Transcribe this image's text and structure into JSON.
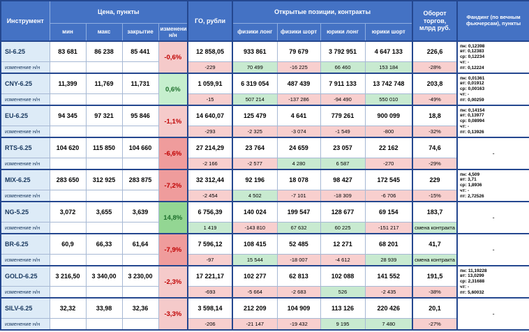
{
  "header": {
    "instrument": "Инструмент",
    "price_group": "Цена, пункты",
    "col_min": "мин",
    "col_max": "макс",
    "col_close": "закрытие",
    "col_change": "изменение н/н",
    "go": "ГО, рубли",
    "positions_group": "Открытые позиции, контракты",
    "col_fiz_long": "физики лонг",
    "col_fiz_short": "физики шорт",
    "col_jur_long": "юрики лонг",
    "col_jur_short": "юрики шорт",
    "turnover": "Оборот торгов, млрд руб.",
    "funding": "Фандинг (по вечным фьючерсам), пункты"
  },
  "change_row_label": "изменение н/н",
  "colors": {
    "header_bg": "#4472C4",
    "header_text": "#FFFFFF",
    "instrument_bg": "#DDEBF7",
    "negative_text": "#C00000",
    "positive_text": "#1D6F2B",
    "negative_bg_light": "#F5CACA",
    "negative_bg_strong": "#EF9C9C",
    "positive_bg_light": "#C6EFCE",
    "positive_bg_strong": "#93D693"
  },
  "rows": [
    {
      "name": "SI-6.25",
      "min": "83 681",
      "max": "86 238",
      "close": "85 441",
      "change": "-0,6%",
      "go": "12 858,05",
      "go_chg": "-229",
      "fiz_long": "933 861",
      "fiz_long_chg": "70 499",
      "fiz_short": "79 679",
      "fiz_short_chg": "-16 225",
      "jur_long": "3 792 951",
      "jur_long_chg": "66 460",
      "jur_short": "4 647 133",
      "jur_short_chg": "153 184",
      "turnover": "226,6",
      "turnover_chg": "-28%",
      "funding_lines": [
        "пн: 0,12398",
        "вт: 0,12383",
        "ср: 0,12234",
        "чт: -",
        "пт: 0,12224"
      ]
    },
    {
      "name": "CNY-6.25",
      "min": "11,399",
      "max": "11,769",
      "close": "11,731",
      "change": "0,6%",
      "go": "1 059,91",
      "go_chg": "-15",
      "fiz_long": "6 319 054",
      "fiz_long_chg": "507 214",
      "fiz_short": "487 439",
      "fiz_short_chg": "-137 286",
      "jur_long": "7 911 133",
      "jur_long_chg": "-94 490",
      "jur_short": "13 742 748",
      "jur_short_chg": "550 010",
      "turnover": "203,8",
      "turnover_chg": "-49%",
      "funding_lines": [
        "пн: 0,01361",
        "вт: 0,01912",
        "ср: 0,00163",
        "чт: -",
        "пт: 0,00259"
      ]
    },
    {
      "name": "EU-6.25",
      "min": "94 345",
      "max": "97 321",
      "close": "95 846",
      "change": "-1,1%",
      "go": "14 640,07",
      "go_chg": "-293",
      "fiz_long": "125 479",
      "fiz_long_chg": "-2 325",
      "fiz_short": "4 641",
      "fiz_short_chg": "-3 074",
      "jur_long": "779 261",
      "jur_long_chg": "-1 549",
      "jur_short": "900 099",
      "jur_short_chg": "-800",
      "turnover": "18,8",
      "turnover_chg": "-32%",
      "funding_lines": [
        "пн: 0,14154",
        "вт: 0,13977",
        "ср: 0,08994",
        "чт: -",
        "пт: 0,13926"
      ]
    },
    {
      "name": "RTS-6.25",
      "min": "104 620",
      "max": "115 850",
      "close": "104 660",
      "change": "-6,6%",
      "go": "27 214,29",
      "go_chg": "-2 166",
      "fiz_long": "23 764",
      "fiz_long_chg": "-2 577",
      "fiz_short": "24 659",
      "fiz_short_chg": "4 280",
      "jur_long": "23 057",
      "jur_long_chg": "6 587",
      "jur_short": "22 162",
      "jur_short_chg": "-270",
      "turnover": "74,6",
      "turnover_chg": "-29%",
      "funding_lines": [
        "-"
      ]
    },
    {
      "name": "MIX-6.25",
      "min": "283 650",
      "max": "312 925",
      "close": "283 875",
      "change": "-7,2%",
      "go": "32 312,44",
      "go_chg": "-2 454",
      "fiz_long": "92 196",
      "fiz_long_chg": "4 502",
      "fiz_short": "18 078",
      "fiz_short_chg": "-7 101",
      "jur_long": "98 427",
      "jur_long_chg": "-18 309",
      "jur_short": "172 545",
      "jur_short_chg": "-6 706",
      "turnover": "229",
      "turnover_chg": "-15%",
      "funding_lines": [
        "пн: 4,509",
        "вт: 3,71",
        "ср: 1,8936",
        "чт: -",
        "пт: 2,72526"
      ]
    },
    {
      "name": "NG-5.25",
      "min": "3,072",
      "max": "3,655",
      "close": "3,639",
      "change": "14,8%",
      "go": "6 756,39",
      "go_chg": "1 419",
      "fiz_long": "140 024",
      "fiz_long_chg": "-143 810",
      "fiz_short": "199 547",
      "fiz_short_chg": "67 632",
      "jur_long": "128 677",
      "jur_long_chg": "60 225",
      "jur_short": "69 154",
      "jur_short_chg": "-151 217",
      "turnover": "183,7",
      "turnover_chg": "смена контракта",
      "funding_lines": [
        "-"
      ]
    },
    {
      "name": "BR-6.25",
      "min": "60,9",
      "max": "66,33",
      "close": "61,64",
      "change": "-7,9%",
      "go": "7 596,12",
      "go_chg": "-97",
      "fiz_long": "108 415",
      "fiz_long_chg": "15 544",
      "fiz_short": "52 485",
      "fiz_short_chg": "-18 007",
      "jur_long": "12 271",
      "jur_long_chg": "-4 612",
      "jur_short": "68 201",
      "jur_short_chg": "28 939",
      "turnover": "41,7",
      "turnover_chg": "смена контракта",
      "funding_lines": [
        "-"
      ]
    },
    {
      "name": "GOLD-6.25",
      "min": "3 216,50",
      "max": "3 340,00",
      "close": "3 230,00",
      "change": "-2,3%",
      "go": "17 221,17",
      "go_chg": "-693",
      "fiz_long": "102 277",
      "fiz_long_chg": "-5 664",
      "fiz_short": "62 813",
      "fiz_short_chg": "-2 683",
      "jur_long": "102 088",
      "jur_long_chg": "526",
      "jur_short": "141 552",
      "jur_short_chg": "-2 435",
      "turnover": "191,5",
      "turnover_chg": "-38%",
      "funding_lines": [
        "пн: 11,19228",
        "вт: 13,0299",
        "ср: 2,31688",
        "чт: -",
        "пт: 5,60032"
      ]
    },
    {
      "name": "SILV-6.25",
      "min": "32,32",
      "max": "33,98",
      "close": "32,36",
      "change": "-3,3%",
      "go": "3 598,14",
      "go_chg": "-206",
      "fiz_long": "212 209",
      "fiz_long_chg": "-21 147",
      "fiz_short": "104 909",
      "fiz_short_chg": "-19 432",
      "jur_long": "113 126",
      "jur_long_chg": "9 195",
      "jur_short": "220 426",
      "jur_short_chg": "7 480",
      "turnover": "20,1",
      "turnover_chg": "-27%",
      "funding_lines": [
        "-"
      ]
    }
  ]
}
